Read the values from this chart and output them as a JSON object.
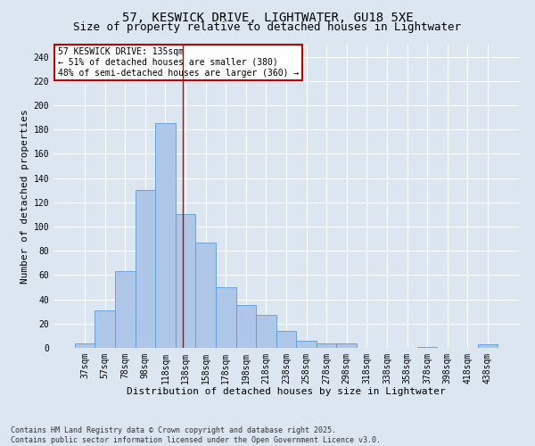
{
  "title1": "57, KESWICK DRIVE, LIGHTWATER, GU18 5XE",
  "title2": "Size of property relative to detached houses in Lightwater",
  "xlabel": "Distribution of detached houses by size in Lightwater",
  "ylabel": "Number of detached properties",
  "categories": [
    "37sqm",
    "57sqm",
    "78sqm",
    "98sqm",
    "118sqm",
    "138sqm",
    "158sqm",
    "178sqm",
    "198sqm",
    "218sqm",
    "238sqm",
    "258sqm",
    "278sqm",
    "298sqm",
    "318sqm",
    "338sqm",
    "358sqm",
    "378sqm",
    "398sqm",
    "418sqm",
    "438sqm"
  ],
  "values": [
    4,
    31,
    63,
    130,
    185,
    110,
    87,
    50,
    35,
    27,
    14,
    6,
    4,
    4,
    0,
    0,
    0,
    1,
    0,
    0,
    3
  ],
  "bar_color": "#aec6e8",
  "bar_edge_color": "#5b9bd5",
  "bar_width": 1.0,
  "vline_color": "#c00000",
  "annotation_text": "57 KESWICK DRIVE: 135sqm\n← 51% of detached houses are smaller (380)\n48% of semi-detached houses are larger (360) →",
  "annotation_box_color": "#ffffff",
  "annotation_box_edge_color": "#c00000",
  "ylim": [
    0,
    250
  ],
  "yticks": [
    0,
    20,
    40,
    60,
    80,
    100,
    120,
    140,
    160,
    180,
    200,
    220,
    240
  ],
  "background_color": "#dce6f1",
  "plot_bg_color": "#dce6f1",
  "grid_color": "#ffffff",
  "footer_text": "Contains HM Land Registry data © Crown copyright and database right 2025.\nContains public sector information licensed under the Open Government Licence v3.0.",
  "title_fontsize": 10,
  "subtitle_fontsize": 9,
  "axis_label_fontsize": 8,
  "tick_fontsize": 7,
  "annotation_fontsize": 7,
  "footer_fontsize": 6
}
